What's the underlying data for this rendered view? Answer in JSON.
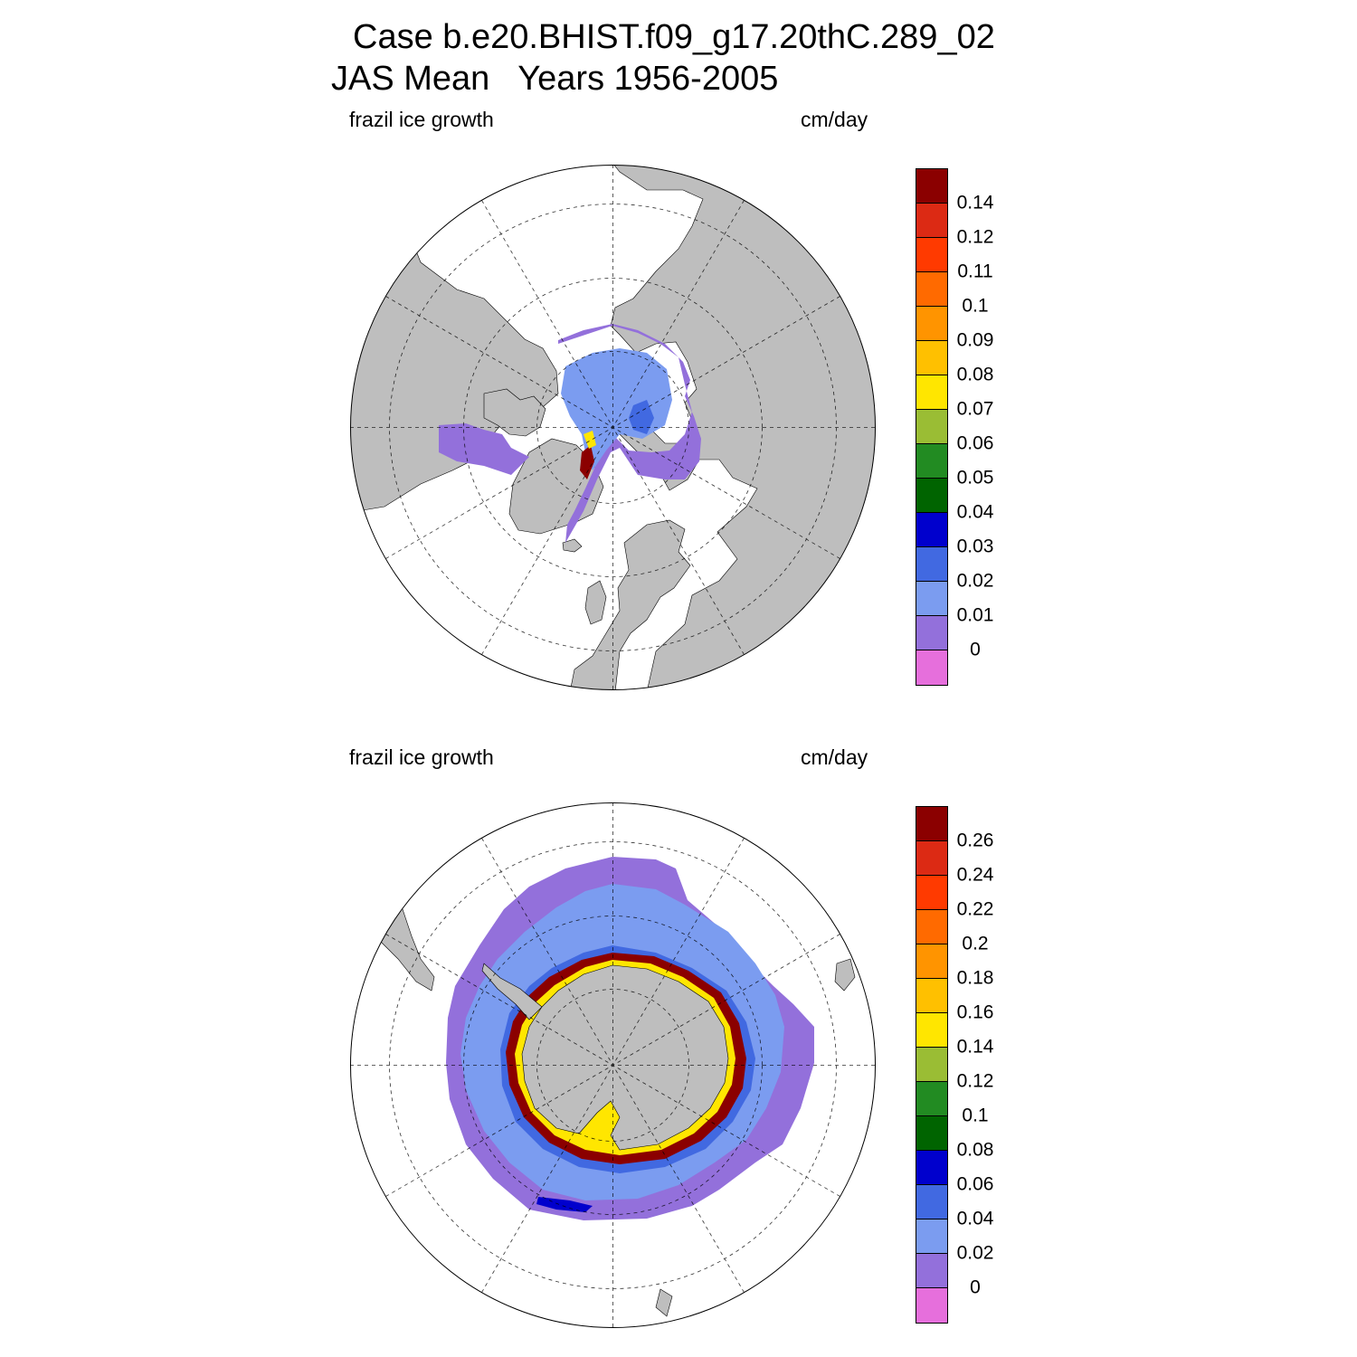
{
  "header": {
    "title_line1": "Case b.e20.BHIST.f09_g17.20thC.289_02",
    "title_line2": "JAS Mean   Years 1956-2005"
  },
  "panels": [
    {
      "id": "north",
      "variable_label": "frazil ice growth",
      "units_label": "cm/day",
      "colorbar": {
        "labels": [
          "0.14",
          "0.12",
          "0.11",
          "0.1",
          "0.09",
          "0.08",
          "0.07",
          "0.06",
          "0.05",
          "0.04",
          "0.03",
          "0.02",
          "0.01",
          "0"
        ]
      }
    },
    {
      "id": "south",
      "variable_label": "frazil ice growth",
      "units_label": "cm/day",
      "colorbar": {
        "labels": [
          "0.26",
          "0.24",
          "0.22",
          "0.2",
          "0.18",
          "0.16",
          "0.14",
          "0.12",
          "0.1",
          "0.08",
          "0.06",
          "0.04",
          "0.02",
          "0"
        ]
      }
    }
  ],
  "colors": {
    "ramp_top_to_bottom": [
      "#8b0000",
      "#dc2a14",
      "#ff3a00",
      "#ff6a00",
      "#ff9400",
      "#ffc000",
      "#ffe600",
      "#9abd34",
      "#228b22",
      "#006400",
      "#0000cd",
      "#4169e1",
      "#7b9cf0",
      "#9370db",
      "#e66fdc"
    ],
    "land": "#bebebe",
    "ocean": "#ffffff"
  }
}
